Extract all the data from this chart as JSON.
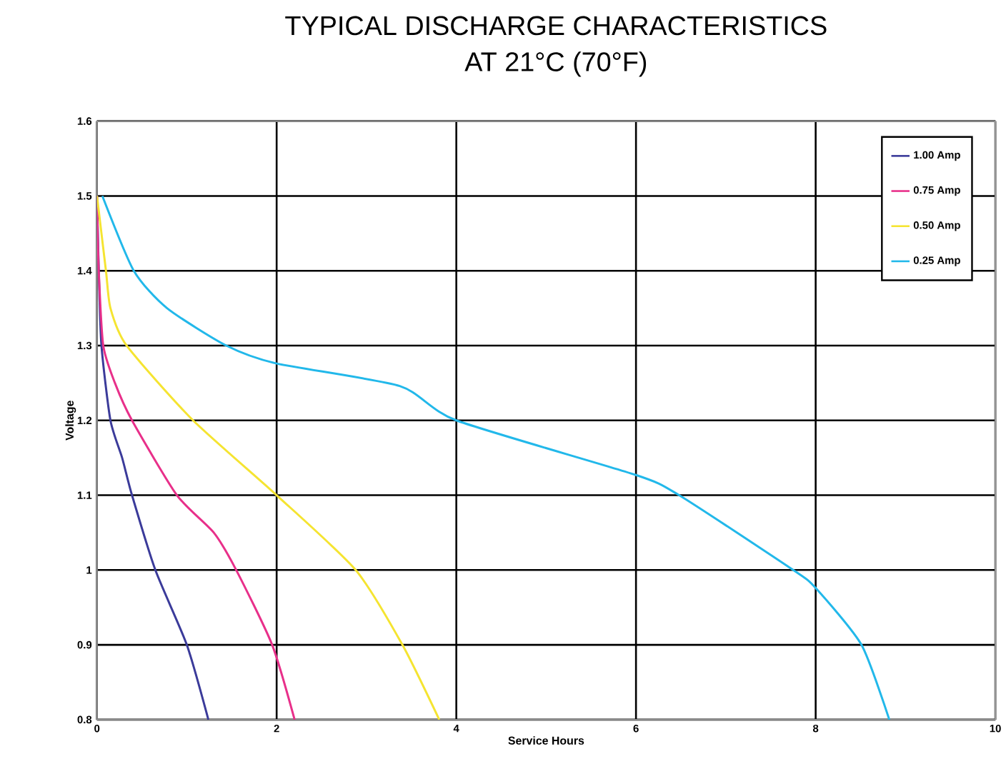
{
  "chart_data": {
    "type": "line",
    "title": "TYPICAL DISCHARGE CHARACTERISTICS",
    "subtitle": "AT 21°C (70°F)",
    "xlabel": "Service Hours",
    "ylabel": "Voltage",
    "xlim": [
      0,
      10
    ],
    "ylim": [
      0.8,
      1.6
    ],
    "xticks": [
      0,
      2,
      4,
      6,
      8,
      10
    ],
    "yticks": [
      0.8,
      0.9,
      1,
      1.1,
      1.2,
      1.3,
      1.4,
      1.5,
      1.6
    ],
    "grid": true,
    "legend": "top right",
    "marker": "none",
    "line_style": "solid",
    "series": [
      {
        "name": "1.00  Amp",
        "color": "#3b3b9a",
        "x": [
          0,
          0.02,
          0.05,
          0.15,
          0.28,
          0.39,
          0.65,
          1.0,
          1.24
        ],
        "values": [
          1.5,
          1.4,
          1.3,
          1.2,
          1.15,
          1.1,
          1.0,
          0.9,
          0.8
        ]
      },
      {
        "name": "0.75  Amp",
        "color": "#e8308a",
        "x": [
          0,
          0.02,
          0.07,
          0.2,
          0.39,
          0.89,
          1.3,
          1.55,
          1.95,
          2.2
        ],
        "values": [
          1.5,
          1.4,
          1.3,
          1.25,
          1.2,
          1.1,
          1.05,
          1.0,
          0.9,
          0.8
        ]
      },
      {
        "name": "0.50  Amp",
        "color": "#f5e431",
        "x": [
          0,
          0.1,
          0.15,
          0.33,
          1.07,
          2.0,
          2.88,
          3.4,
          3.81
        ],
        "values": [
          1.5,
          1.4,
          1.35,
          1.3,
          1.2,
          1.1,
          1.0,
          0.9,
          0.8
        ]
      },
      {
        "name": "0.25  Amp",
        "color": "#22b8ea",
        "x": [
          0.06,
          0.41,
          0.78,
          1.44,
          2.0,
          3.37,
          4.0,
          6.0,
          6.48,
          7.75,
          8.0,
          8.51,
          8.82
        ],
        "values": [
          1.5,
          1.4,
          1.35,
          1.3,
          1.276,
          1.246,
          1.2,
          1.127,
          1.1,
          1.0,
          0.976,
          0.9,
          0.8
        ]
      }
    ]
  }
}
